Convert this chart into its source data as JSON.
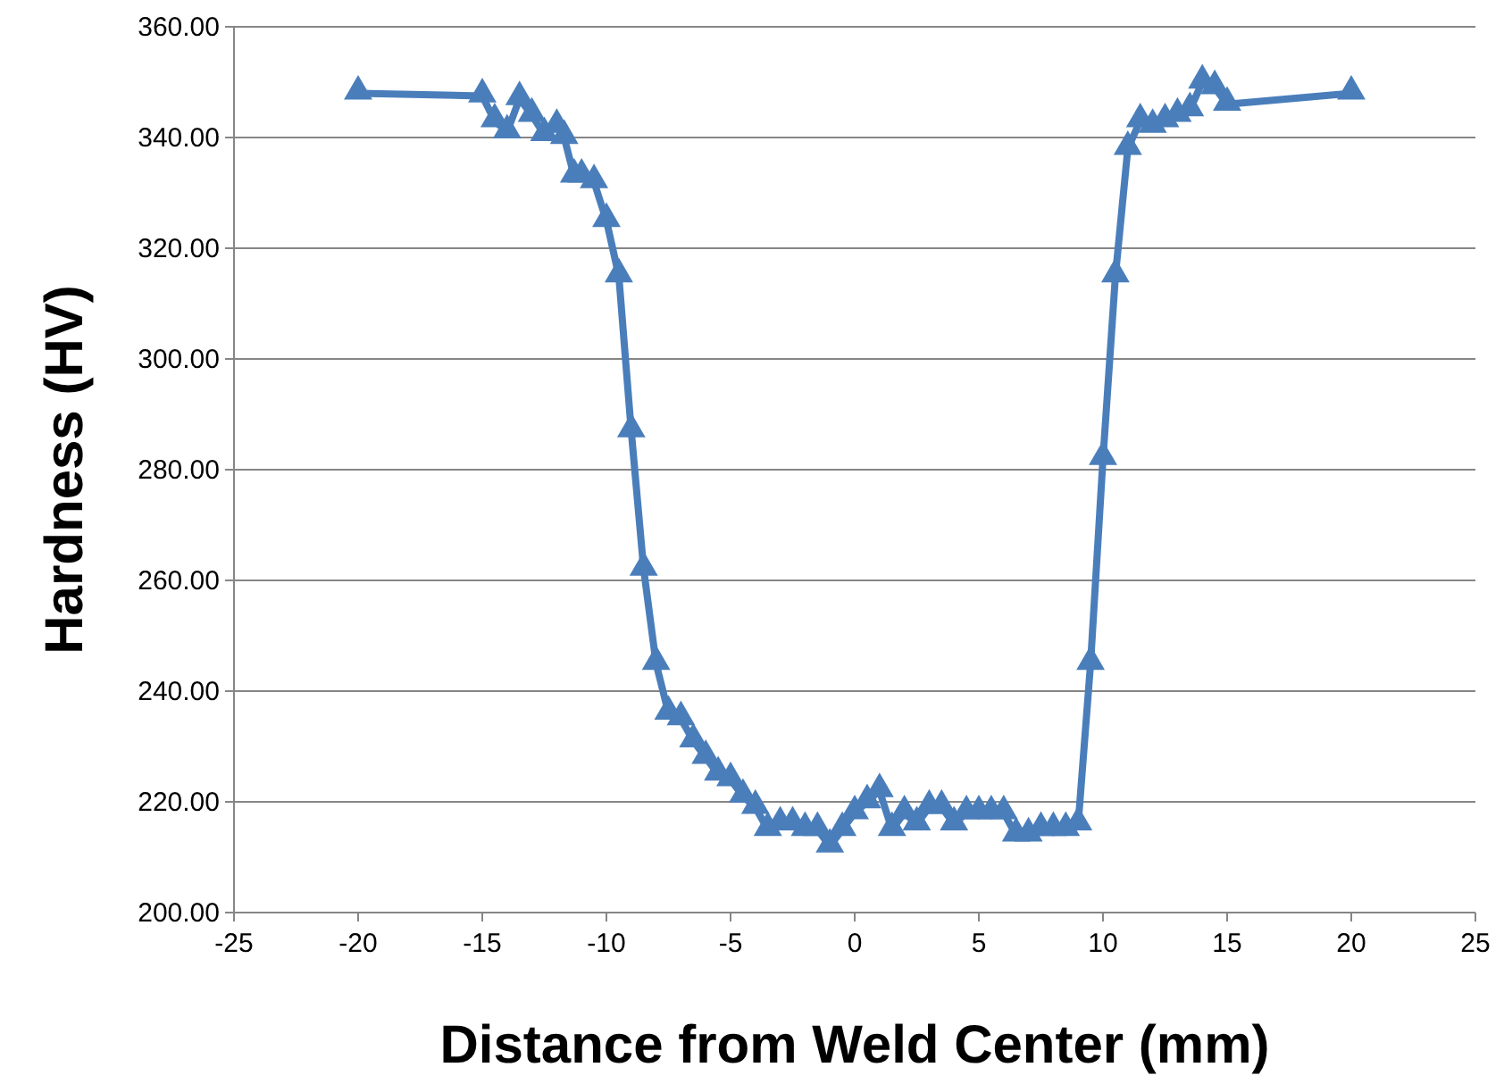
{
  "chart_data": {
    "type": "line",
    "xlabel": "Distance from Weld Center (mm)",
    "ylabel": "Hardness (HV)",
    "xlim": [
      -25,
      25
    ],
    "xticks": [
      -25,
      -20,
      -15,
      -10,
      -5,
      0,
      5,
      10,
      15,
      20,
      25
    ],
    "ylim": [
      200,
      360
    ],
    "yticks": [
      {
        "value": 200,
        "label": "200.00"
      },
      {
        "value": 220,
        "label": "220.00"
      },
      {
        "value": 240,
        "label": "240.00"
      },
      {
        "value": 260,
        "label": "260.00"
      },
      {
        "value": 280,
        "label": "280.00"
      },
      {
        "value": 300,
        "label": "300.00"
      },
      {
        "value": 320,
        "label": "320.00"
      },
      {
        "value": 340,
        "label": "340.00"
      },
      {
        "value": 360,
        "label": "360.00"
      }
    ],
    "grid": "y",
    "marker": "triangle",
    "line_style": "solid",
    "series": [
      {
        "color": "#4a7ebb",
        "x": [
          -20,
          -15,
          -14.5,
          -14,
          -13.5,
          -13,
          -12.5,
          -12,
          -11.7,
          -11.3,
          -11,
          -10.5,
          -10,
          -9.5,
          -9,
          -8.5,
          -8,
          -7.5,
          -7,
          -6.5,
          -6,
          -5.5,
          -5,
          -4.5,
          -4,
          -3.5,
          -3,
          -2.5,
          -2,
          -1.5,
          -1,
          -0.5,
          0,
          0.5,
          1,
          1.5,
          2,
          2.5,
          3,
          3.5,
          4,
          4.5,
          5,
          5.5,
          6,
          6.5,
          7,
          7.5,
          8,
          8.5,
          9,
          9.5,
          10,
          10.5,
          11,
          11.5,
          12,
          12.5,
          13,
          13.5,
          14,
          14.5,
          15,
          20
        ],
        "values": [
          348,
          347.5,
          343,
          341,
          347,
          344,
          340.5,
          342,
          340,
          333,
          333,
          332,
          325,
          315,
          287,
          262,
          245,
          236,
          235,
          231,
          228,
          225,
          224,
          221,
          219,
          215,
          216,
          216,
          215,
          215,
          212,
          215,
          218,
          220,
          222,
          215,
          218,
          216,
          219,
          219,
          216,
          218,
          218,
          218,
          218,
          214,
          214,
          215,
          215,
          215,
          216,
          245,
          282,
          315,
          338,
          343,
          342,
          343,
          344,
          345,
          350,
          349,
          346,
          348
        ]
      }
    ]
  }
}
